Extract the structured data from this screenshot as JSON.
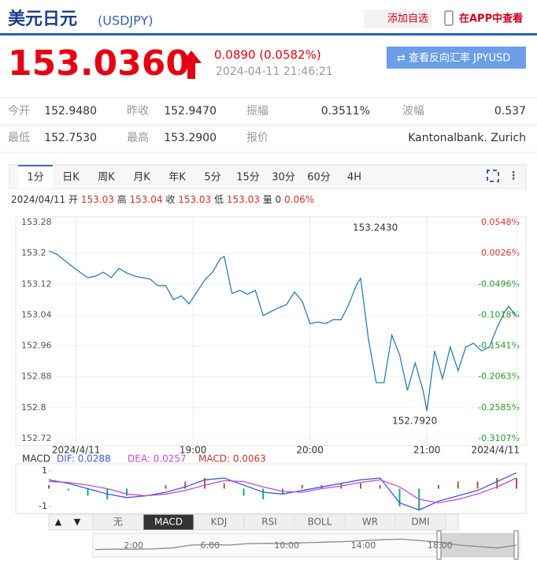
{
  "header": {
    "title": "美元日元",
    "code": "(USDJPY)",
    "add_watch": "添加自选",
    "app_view": "在APP中查看"
  },
  "quote": {
    "price": "153.0360",
    "change": "0.0890 (0.0582%)",
    "time": "2024-04-11 21:46:21",
    "reverse_button": "查看反向汇率 JPYUSD"
  },
  "stats": {
    "rows": [
      [
        "今开",
        "152.9480",
        "昨收",
        "152.9470",
        "振幅",
        "0.3511%",
        "波幅",
        "0.537"
      ],
      [
        "最低",
        "152.7530",
        "最高",
        "153.2900",
        "报价",
        "Kantonalbank. Zurich"
      ]
    ]
  },
  "period_tabs": {
    "items": [
      "1分",
      "日K",
      "周K",
      "月K",
      "年K",
      "5分",
      "15分",
      "30分",
      "60分",
      "4H"
    ],
    "selected": 0
  },
  "info": {
    "date": "2024/04/11",
    "items": [
      {
        "label": "开",
        "value": "153.03"
      },
      {
        "label": "高",
        "value": "153.04"
      },
      {
        "label": "收",
        "value": "153.03"
      },
      {
        "label": "低",
        "value": "153.03"
      },
      {
        "label": "量",
        "value": "0"
      }
    ],
    "change": "0.06%"
  },
  "indicator_tabs": {
    "items": [
      "无",
      "MACD",
      "KDJ",
      "RSI",
      "BOLL",
      "WR",
      "DMI"
    ],
    "selected": 1
  },
  "chart_data": [
    {
      "type": "line",
      "color": "#2a7fb0",
      "x": [
        1066,
        1070,
        1074,
        1078,
        1082,
        1086,
        1090,
        1094,
        1098,
        1102,
        1106,
        1110,
        1114,
        1118,
        1122,
        1126,
        1130,
        1134,
        1138,
        1142,
        1146,
        1150,
        1154,
        1156,
        1160,
        1164,
        1168,
        1172,
        1176,
        1180,
        1184,
        1188,
        1192,
        1196,
        1200,
        1204,
        1208,
        1212,
        1216,
        1220,
        1224,
        1226,
        1230,
        1234,
        1238,
        1242,
        1246,
        1250,
        1254,
        1258,
        1260,
        1264,
        1268,
        1272,
        1276,
        1280,
        1284,
        1288,
        1292,
        1296,
        1300,
        1302,
        1306
      ],
      "values": [
        153.206,
        153.198,
        153.182,
        153.166,
        153.151,
        153.137,
        153.141,
        153.151,
        153.137,
        153.161,
        153.149,
        153.141,
        153.137,
        153.133,
        153.116,
        153.116,
        153.08,
        153.09,
        153.069,
        153.1,
        153.131,
        153.151,
        153.186,
        153.192,
        153.096,
        153.104,
        153.094,
        153.104,
        153.039,
        153.049,
        153.059,
        153.067,
        153.1,
        153.076,
        153.018,
        153.022,
        153.018,
        153.028,
        153.028,
        153.069,
        153.12,
        153.135,
        152.978,
        152.865,
        152.865,
        152.988,
        152.937,
        152.845,
        152.916,
        152.845,
        152.792,
        152.947,
        152.875,
        152.957,
        152.896,
        152.957,
        152.967,
        152.947,
        152.957,
        153.008,
        153.049,
        153.063,
        153.036
      ],
      "xlim": [
        1066,
        1306
      ],
      "xticks": [
        {
          "value": 1080,
          "label": "2024/4/11"
        },
        {
          "value": 1140,
          "label": "19:00"
        },
        {
          "value": 1200,
          "label": "20:00"
        },
        {
          "value": 1260,
          "label": "21:00"
        },
        {
          "value": 1306,
          "label": "2024/4/11"
        }
      ],
      "ylim": [
        152.72,
        153.28
      ],
      "yticks": [
        153.28,
        153.2,
        153.12,
        153.04,
        152.96,
        152.88,
        152.8,
        152.72
      ],
      "y2lim": [
        -0.3107,
        0.0548
      ],
      "y2ticks": [
        {
          "value": 0.0548,
          "label": "0.0548%"
        },
        {
          "value": 0.0026,
          "label": "0.0026%"
        },
        {
          "value": -0.0496,
          "label": "-0.0496%"
        },
        {
          "value": -0.1018,
          "label": "-0.1018%"
        },
        {
          "value": -0.1541,
          "label": "-0.1541%"
        },
        {
          "value": -0.2063,
          "label": "-0.2063%"
        },
        {
          "value": -0.2585,
          "label": "-0.2585%"
        },
        {
          "value": -0.3107,
          "label": "-0.3107%"
        }
      ],
      "y2_up_color": "#e03030",
      "y2_down_color": "#2a9a2a",
      "annotations": [
        "153.2430",
        "152.7920"
      ],
      "grid": true
    },
    {
      "type": "macd",
      "label": "MACD",
      "x": [
        1066,
        1076,
        1086,
        1096,
        1106,
        1116,
        1126,
        1136,
        1146,
        1156,
        1166,
        1176,
        1186,
        1196,
        1206,
        1216,
        1226,
        1236,
        1246,
        1256,
        1266,
        1276,
        1286,
        1296,
        1306
      ],
      "series": [
        {
          "name": "DIF: 0.0288",
          "color": "#3b5bdb",
          "kind": "line",
          "values": [
            0.5,
            0.3,
            0.0,
            -0.3,
            -0.5,
            -0.4,
            -0.2,
            0.1,
            0.5,
            0.6,
            0.2,
            -0.2,
            -0.3,
            -0.1,
            0.1,
            0.3,
            0.5,
            0.6,
            -0.8,
            -1.2,
            -0.7,
            -0.4,
            -0.1,
            0.4,
            0.9
          ]
        },
        {
          "name": "DEA: 0.0257",
          "color": "#c04bd6",
          "kind": "line",
          "values": [
            0.4,
            0.35,
            0.2,
            0.0,
            -0.3,
            -0.4,
            -0.3,
            -0.1,
            0.2,
            0.45,
            0.4,
            0.1,
            -0.15,
            -0.2,
            0.0,
            0.15,
            0.35,
            0.5,
            0.1,
            -0.6,
            -0.8,
            -0.6,
            -0.3,
            0.1,
            0.6
          ]
        },
        {
          "name": "MACD: 0.0063",
          "color": "#c0392b",
          "kind": "bar",
          "values": [
            0.2,
            -0.1,
            -0.4,
            -0.6,
            -0.4,
            0.0,
            0.2,
            0.4,
            0.6,
            0.3,
            -0.4,
            -0.6,
            -0.3,
            0.2,
            0.2,
            0.3,
            0.3,
            0.2,
            -1.0,
            -1.2,
            0.2,
            0.4,
            0.4,
            0.6,
            0.6
          ]
        }
      ],
      "up_color": "#b5533c",
      "down_color": "#1aa37a",
      "xlim": [
        1066,
        1306
      ],
      "ylim": [
        -1.4,
        1.4
      ],
      "yticks": [
        1,
        -1
      ]
    },
    {
      "type": "line",
      "color": "#8a8a8a",
      "x": [
        0,
        1,
        2,
        3,
        4,
        5,
        6,
        7,
        8,
        9,
        10,
        11,
        12,
        13,
        14,
        15,
        16,
        17,
        18,
        19,
        20,
        21,
        22
      ],
      "values": [
        152.85,
        152.86,
        152.86,
        152.87,
        152.9,
        153.0,
        153.02,
        153.0,
        153.05,
        153.06,
        153.05,
        153.08,
        153.1,
        153.12,
        153.15,
        153.18,
        153.2,
        153.15,
        153.1,
        153.0,
        152.95,
        152.9,
        153.0
      ],
      "xlim": [
        0,
        22
      ],
      "ylim": [
        152.6,
        153.4
      ],
      "xticks": [
        {
          "value": 2,
          "label": "2:00"
        },
        {
          "value": 6,
          "label": "6:00"
        },
        {
          "value": 10,
          "label": "10:00"
        },
        {
          "value": 14,
          "label": "14:00"
        },
        {
          "value": 18,
          "label": "18:00"
        }
      ]
    }
  ]
}
